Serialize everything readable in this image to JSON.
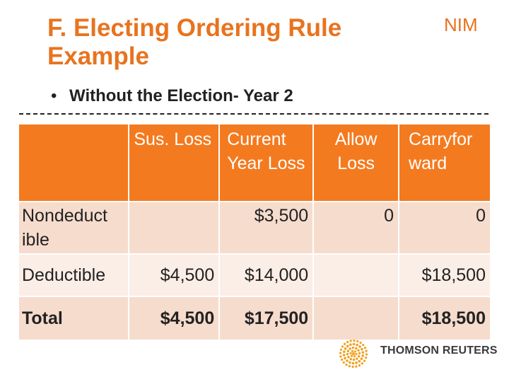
{
  "slide": {
    "title": "F. Electing Ordering Rule Example",
    "corner_label": "NIM",
    "bullet": "Without the Election- Year 2"
  },
  "table": {
    "headers": [
      "",
      "Sus. Loss",
      "Current Year Loss",
      "Allow Loss",
      "Carryfor ward"
    ],
    "rows": [
      {
        "label": "Nondeduct ible",
        "sus_loss": "",
        "current_year_loss": "$3,500",
        "allow_loss": "0",
        "carryforward": "0"
      },
      {
        "label": "Deductible",
        "sus_loss": "$4,500",
        "current_year_loss": "$14,000",
        "allow_loss": "",
        "carryforward": "$18,500"
      },
      {
        "label": "Total",
        "sus_loss": "$4,500",
        "current_year_loss": "$17,500",
        "allow_loss": "",
        "carryforward": "$18,500"
      }
    ]
  },
  "logo": {
    "text": "THOMSON REUTERS",
    "icon": "thomson-reuters-dot-logo-icon"
  },
  "colors": {
    "accent": "#e8731f",
    "header_bg": "#f47a1f",
    "row_dark": "#f6dccd",
    "row_light": "#fbeee6"
  }
}
